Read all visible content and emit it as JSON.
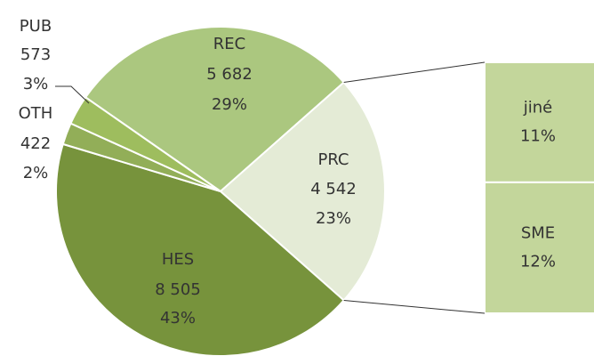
{
  "chart_data": {
    "type": "pie-of-bar",
    "categories": [
      "REC",
      "PRC",
      "HES",
      "OTH",
      "PUB"
    ],
    "values": [
      5682,
      4542,
      8505,
      422,
      573
    ],
    "value_labels": [
      "5 682",
      "4 542",
      "8 505",
      "422",
      "573"
    ],
    "percents": [
      29,
      23,
      43,
      2,
      3
    ],
    "percent_labels": [
      "29%",
      "23%",
      "43%",
      "2%",
      "3%"
    ],
    "colors": [
      "#abc77f",
      "#e4ebd6",
      "#77933c",
      "#92ae58",
      "#9ebd5e"
    ],
    "bar": {
      "categories": [
        "jiné",
        "SME"
      ],
      "values": [
        11,
        12
      ],
      "value_labels": [
        "11%",
        "12%"
      ],
      "color": "#c3d69b"
    }
  }
}
